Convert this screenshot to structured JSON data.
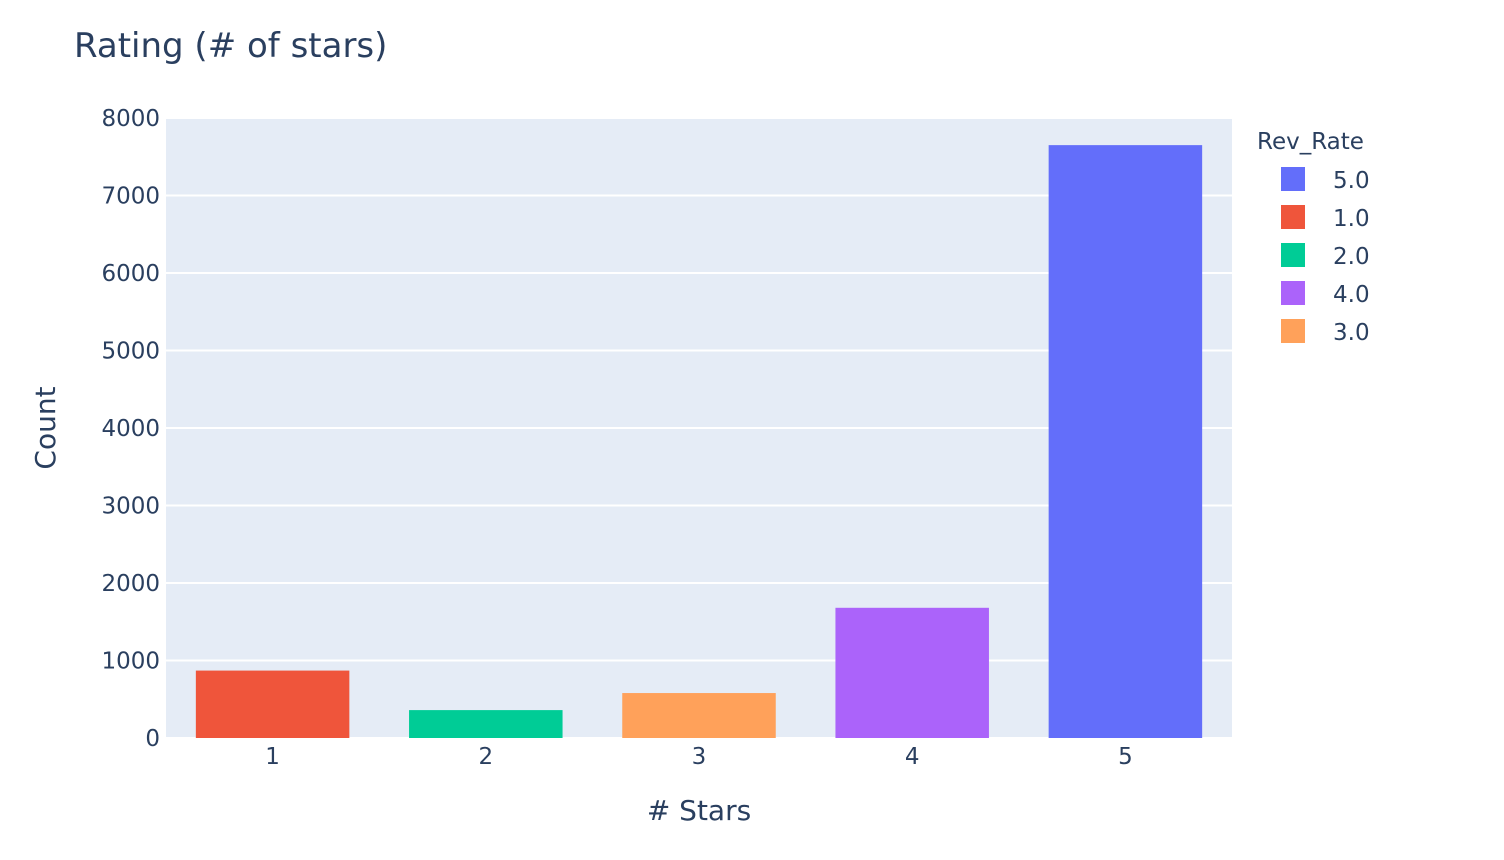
{
  "chart_data": {
    "type": "bar",
    "title": "Rating (# of stars)",
    "xlabel": "# Stars",
    "ylabel": "Count",
    "categories": [
      "1",
      "2",
      "3",
      "4",
      "5"
    ],
    "ylim": [
      0,
      8000
    ],
    "yticks": [
      0,
      1000,
      2000,
      3000,
      4000,
      5000,
      6000,
      7000,
      8000
    ],
    "grid": true,
    "legend": {
      "title": "Rev_Rate",
      "position": "right",
      "entries": [
        {
          "label": "5.0",
          "color": "#636efa"
        },
        {
          "label": "1.0",
          "color": "#ef553b"
        },
        {
          "label": "2.0",
          "color": "#00cc96"
        },
        {
          "label": "4.0",
          "color": "#ab63fa"
        },
        {
          "label": "3.0",
          "color": "#ffa15a"
        }
      ]
    },
    "series": [
      {
        "name": "5.0",
        "category": "5",
        "value": 7650,
        "color": "#636efa"
      },
      {
        "name": "1.0",
        "category": "1",
        "value": 870,
        "color": "#ef553b"
      },
      {
        "name": "2.0",
        "category": "2",
        "value": 360,
        "color": "#00cc96"
      },
      {
        "name": "4.0",
        "category": "4",
        "value": 1680,
        "color": "#ab63fa"
      },
      {
        "name": "3.0",
        "category": "3",
        "value": 580,
        "color": "#ffa15a"
      }
    ],
    "plot_background": "#e5ecf6"
  }
}
